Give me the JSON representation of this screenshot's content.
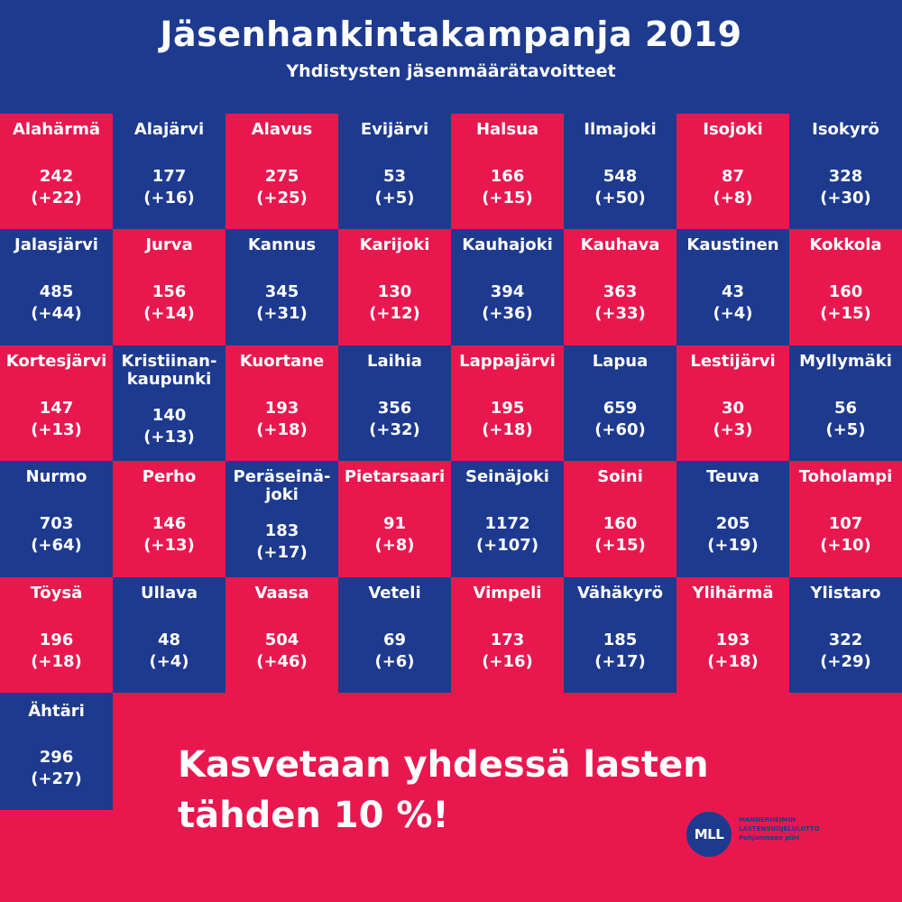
{
  "header": {
    "title": "Jäsenhankintakampanja 2019",
    "subtitle": "Yhdistysten jäsenmäärätavoitteet"
  },
  "cells": [
    {
      "name": "Alahärmä",
      "target": "242",
      "increase": "(+22)",
      "color": "red"
    },
    {
      "name": "Alajärvi",
      "target": "177",
      "increase": "(+16)",
      "color": "blue"
    },
    {
      "name": "Alavus",
      "target": "275",
      "increase": "(+25)",
      "color": "red"
    },
    {
      "name": "Evijärvi",
      "target": "53",
      "increase": "(+5)",
      "color": "blue"
    },
    {
      "name": "Halsua",
      "target": "166",
      "increase": "(+15)",
      "color": "red"
    },
    {
      "name": "Ilmajoki",
      "target": "548",
      "increase": "(+50)",
      "color": "blue"
    },
    {
      "name": "Isojoki",
      "target": "87",
      "increase": "(+8)",
      "color": "red"
    },
    {
      "name": "Isokyrö",
      "target": "328",
      "increase": "(+30)",
      "color": "blue"
    },
    {
      "name": "Jalasjärvi",
      "target": "485",
      "increase": "(+44)",
      "color": "blue"
    },
    {
      "name": "Jurva",
      "target": "156",
      "increase": "(+14)",
      "color": "red"
    },
    {
      "name": "Kannus",
      "target": "345",
      "increase": "(+31)",
      "color": "blue"
    },
    {
      "name": "Karijoki",
      "target": "130",
      "increase": "(+12)",
      "color": "red"
    },
    {
      "name": "Kauhajoki",
      "target": "394",
      "increase": "(+36)",
      "color": "blue"
    },
    {
      "name": "Kauhava",
      "target": "363",
      "increase": "(+33)",
      "color": "red"
    },
    {
      "name": "Kaustinen",
      "target": "43",
      "increase": "(+4)",
      "color": "blue"
    },
    {
      "name": "Kokkola",
      "target": "160",
      "increase": "(+15)",
      "color": "red"
    },
    {
      "name": "Kortesjärvi",
      "target": "147",
      "increase": "(+13)",
      "color": "red"
    },
    {
      "name": "Kristiinan-\nkaupunki",
      "target": "140",
      "increase": "(+13)",
      "color": "blue",
      "two_line": true
    },
    {
      "name": "Kuortane",
      "target": "193",
      "increase": "(+18)",
      "color": "red"
    },
    {
      "name": "Laihia",
      "target": "356",
      "increase": "(+32)",
      "color": "blue"
    },
    {
      "name": "Lappajärvi",
      "target": "195",
      "increase": "(+18)",
      "color": "red"
    },
    {
      "name": "Lapua",
      "target": "659",
      "increase": "(+60)",
      "color": "blue"
    },
    {
      "name": "Lestijärvi",
      "target": "30",
      "increase": "(+3)",
      "color": "red"
    },
    {
      "name": "Myllymäki",
      "target": "56",
      "increase": "(+5)",
      "color": "blue"
    },
    {
      "name": "Nurmo",
      "target": "703",
      "increase": "(+64)",
      "color": "blue"
    },
    {
      "name": "Perho",
      "target": "146",
      "increase": "(+13)",
      "color": "red"
    },
    {
      "name": "Peräseinä-\njoki",
      "target": "183",
      "increase": "(+17)",
      "color": "blue",
      "two_line": true
    },
    {
      "name": "Pietarsaari",
      "target": "91",
      "increase": "(+8)",
      "color": "red"
    },
    {
      "name": "Seinäjoki",
      "target": "1172",
      "increase": "(+107)",
      "color": "blue"
    },
    {
      "name": "Soini",
      "target": "160",
      "increase": "(+15)",
      "color": "red"
    },
    {
      "name": "Teuva",
      "target": "205",
      "increase": "(+19)",
      "color": "blue"
    },
    {
      "name": "Toholampi",
      "target": "107",
      "increase": "(+10)",
      "color": "red"
    },
    {
      "name": "Töysä",
      "target": "196",
      "increase": "(+18)",
      "color": "red"
    },
    {
      "name": "Ullava",
      "target": "48",
      "increase": "(+4)",
      "color": "blue"
    },
    {
      "name": "Vaasa",
      "target": "504",
      "increase": "(+46)",
      "color": "red"
    },
    {
      "name": "Veteli",
      "target": "69",
      "increase": "(+6)",
      "color": "blue"
    },
    {
      "name": "Vimpeli",
      "target": "173",
      "increase": "(+16)",
      "color": "red"
    },
    {
      "name": "Vähäkyrö",
      "target": "185",
      "increase": "(+17)",
      "color": "blue"
    },
    {
      "name": "Ylihärmä",
      "target": "193",
      "increase": "(+18)",
      "color": "red"
    },
    {
      "name": "Ylistaro",
      "target": "322",
      "increase": "(+29)",
      "color": "blue"
    }
  ],
  "last": {
    "name": "Ähtäri",
    "target": "296",
    "increase": "(+27)"
  },
  "slogan": {
    "line1": "Kasvetaan yhdessä lasten",
    "line2": "tähden 10 %!"
  },
  "logo": {
    "mark": "MLL",
    "org_line1": "MANNERHEIMIN",
    "org_line2": "LASTENSUOJELULIITTO",
    "district": "Pohjanmaan piiri"
  },
  "colors": {
    "red": "#e8184f",
    "blue": "#1d3a8f",
    "text": "#ffffff"
  }
}
